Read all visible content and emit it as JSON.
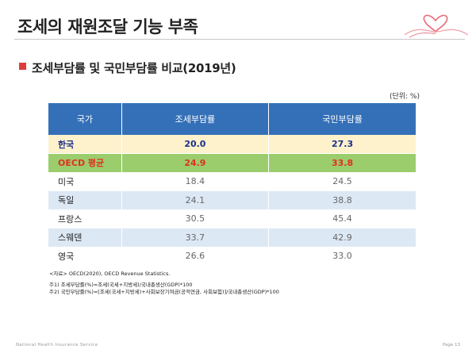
{
  "header": {
    "title": "조세의 재원조달 기능 부족"
  },
  "section": {
    "subtitle": "조세부담률 및 국민부담률 비교(2019년)",
    "unit": "(단위: %)"
  },
  "table": {
    "headers": [
      "국가",
      "조세부담률",
      "국민부담률"
    ],
    "rows": [
      {
        "country": "한국",
        "tax_burden": "20.0",
        "national_burden": "27.3"
      },
      {
        "country": "OECD 평균",
        "tax_burden": "24.9",
        "national_burden": "33.8"
      },
      {
        "country": "미국",
        "tax_burden": "18.4",
        "national_burden": "24.5"
      },
      {
        "country": "독일",
        "tax_burden": "24.1",
        "national_burden": "38.8"
      },
      {
        "country": "프랑스",
        "tax_burden": "30.5",
        "national_burden": "45.4"
      },
      {
        "country": "스웨덴",
        "tax_burden": "33.7",
        "national_burden": "42.9"
      },
      {
        "country": "영국",
        "tax_burden": "26.6",
        "national_burden": "33.0"
      }
    ]
  },
  "notes": {
    "source": "<자료> OECD(2020),   OECD  Revenue  Statistics.",
    "note1": "주1) 조세부담률(%)=조세(국세+지방세)/국내총생산(GDP)*100",
    "note2": "주2) 국민부담률(%)=[조세(국세+지방세)+사회보장기여금(공적연금, 사회보험)]/국내총생산(GDP)*100"
  },
  "footer": {
    "left": "National   Health   Insurance   Service",
    "right": "Page 13"
  },
  "colors": {
    "header_bg": "#3470b8",
    "korea_row": "#fdf2cc",
    "oecd_row": "#9bcd6c",
    "alt_row": "#dde8f5",
    "accent_red": "#e03c3c"
  }
}
